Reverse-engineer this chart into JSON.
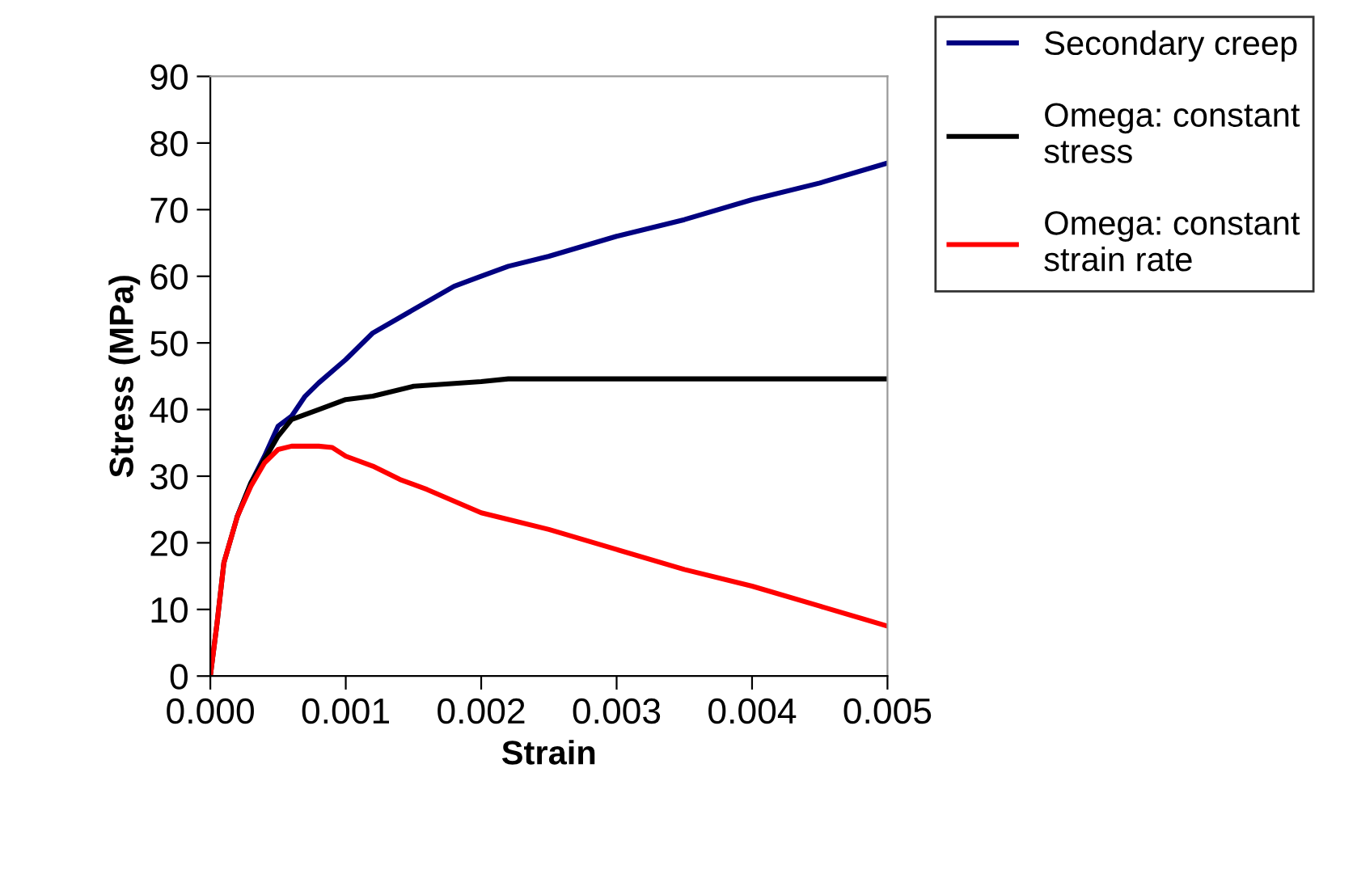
{
  "chart_data": {
    "type": "line",
    "xlabel": "Strain",
    "ylabel": "Stress (MPa)",
    "xlim": [
      0,
      0.005
    ],
    "ylim": [
      0,
      90
    ],
    "xticks": [
      {
        "value": 0,
        "label": "0.000"
      },
      {
        "value": 0.001,
        "label": "0.001"
      },
      {
        "value": 0.002,
        "label": "0.002"
      },
      {
        "value": 0.003,
        "label": "0.003"
      },
      {
        "value": 0.004,
        "label": "0.004"
      },
      {
        "value": 0.005,
        "label": "0.005"
      }
    ],
    "yticks": [
      0,
      10,
      20,
      30,
      40,
      50,
      60,
      70,
      80,
      90
    ],
    "grid": false,
    "legend": "top right",
    "marker": "none",
    "line_style": "solid",
    "series": [
      {
        "name": "Secondary creep",
        "color": "#000080",
        "x": [
          0.0002,
          0.0003,
          0.0004,
          0.0005,
          0.0006,
          0.0007,
          0.0008,
          0.001,
          0.0011,
          0.0012,
          0.0015,
          0.0018,
          0.002,
          0.0022,
          0.0025,
          0.003,
          0.0035,
          0.004,
          0.0045,
          0.005
        ],
        "values": [
          24,
          29,
          33,
          37.5,
          39,
          42,
          44,
          47.5,
          49.5,
          51.5,
          55,
          58.5,
          60,
          61.5,
          63,
          66,
          68.5,
          71.5,
          74,
          77
        ]
      },
      {
        "name": "Omega: constant\nstress",
        "color": "#000000",
        "x": [
          0,
          5e-05,
          0.0001,
          0.0002,
          0.0003,
          0.0004,
          0.0005,
          0.0006,
          0.0008,
          0.001,
          0.0012,
          0.0015,
          0.002,
          0.0022,
          0.005
        ],
        "values": [
          0,
          8,
          17,
          24,
          29,
          32.5,
          36,
          38.5,
          40,
          41.5,
          42,
          43.5,
          44.2,
          44.6,
          44.6
        ]
      },
      {
        "name": "Omega: constant\nstrain rate",
        "color": "#ff0000",
        "x": [
          0,
          5e-05,
          0.0001,
          0.0002,
          0.0003,
          0.0004,
          0.0005,
          0.0006,
          0.0008,
          0.0009,
          0.001,
          0.0012,
          0.0014,
          0.0016,
          0.002,
          0.0022,
          0.0025,
          0.003,
          0.0035,
          0.004,
          0.0045,
          0.005
        ],
        "values": [
          0,
          8,
          17,
          24,
          28.5,
          32,
          34,
          34.5,
          34.5,
          34.3,
          33,
          31.5,
          29.5,
          28,
          24.5,
          23.5,
          22,
          19,
          16,
          13.5,
          10.5,
          7.5
        ]
      }
    ]
  }
}
